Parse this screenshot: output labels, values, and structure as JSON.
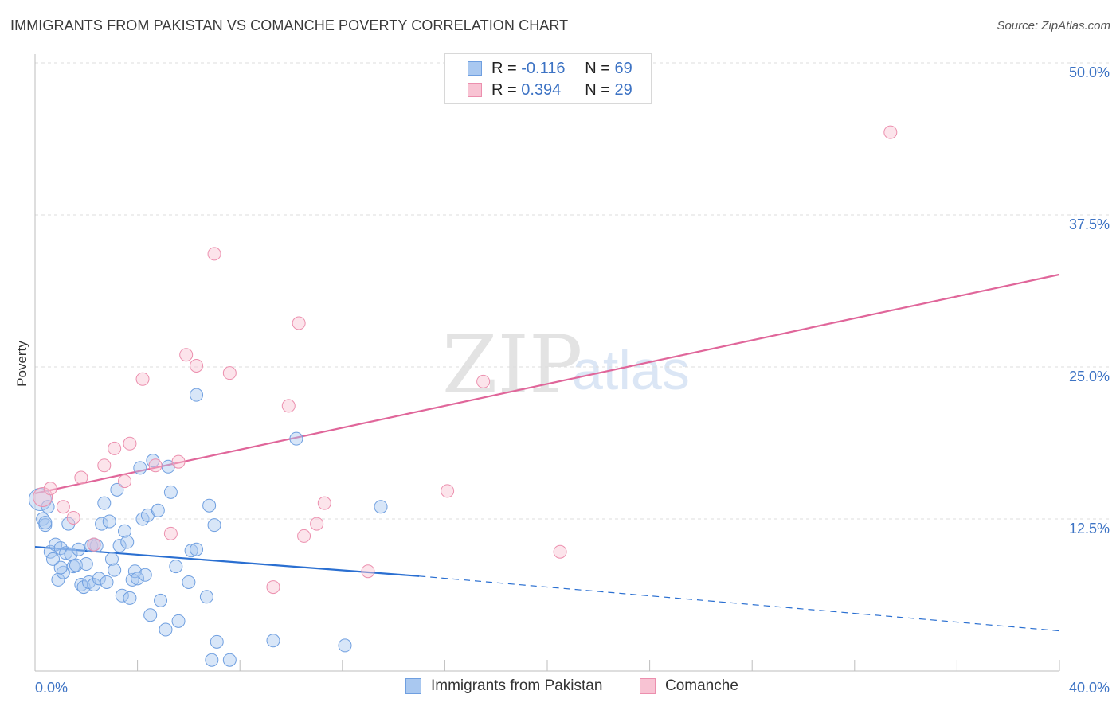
{
  "title": "IMMIGRANTS FROM PAKISTAN VS COMANCHE POVERTY CORRELATION CHART",
  "source": "Source: ZipAtlas.com",
  "watermark": {
    "zip": "ZIP",
    "atlas": "atlas"
  },
  "legend": {
    "r_label": "R =",
    "n_label": "N =",
    "rows": [
      {
        "r": "-0.116",
        "n": "69",
        "color": "#a9c8f0",
        "border": "#6f9fe0"
      },
      {
        "r": "0.394",
        "n": "29",
        "color": "#f8c3d3",
        "border": "#ec8fae"
      }
    ]
  },
  "bottom_legend": [
    {
      "label": "Immigrants from Pakistan",
      "color": "#a9c8f0",
      "border": "#6f9fe0"
    },
    {
      "label": "Comanche",
      "color": "#f8c3d3",
      "border": "#ec8fae"
    }
  ],
  "chart_data": {
    "type": "scatter",
    "title": "IMMIGRANTS FROM PAKISTAN VS COMANCHE POVERTY CORRELATION CHART",
    "xlabel": "",
    "ylabel": "Poverty",
    "xlim": [
      0,
      40
    ],
    "ylim": [
      0,
      50
    ],
    "x_tick_labels": [
      "0.0%",
      "40.0%"
    ],
    "y_ticks": [
      12.5,
      25.0,
      37.5,
      50.0
    ],
    "y_tick_labels": [
      "12.5%",
      "25.0%",
      "37.5%",
      "50.0%"
    ],
    "grid": true,
    "series": [
      {
        "name": "Immigrants from Pakistan",
        "color": "#6f9fe0",
        "fill": "rgba(169,200,240,0.45)",
        "trend_color": "#2a6fd1",
        "trend": {
          "x0": 0,
          "y0": 10.2,
          "x1": 15,
          "y1": 7.8,
          "dash_to_x": 40,
          "dash_to_y": 3.3
        },
        "points": [
          [
            0.2,
            14.1
          ],
          [
            0.3,
            12.5
          ],
          [
            0.4,
            12.0
          ],
          [
            0.5,
            13.5
          ],
          [
            0.6,
            9.8
          ],
          [
            0.7,
            9.2
          ],
          [
            0.8,
            10.4
          ],
          [
            0.9,
            7.5
          ],
          [
            1.0,
            10.1
          ],
          [
            1.1,
            8.1
          ],
          [
            1.2,
            9.7
          ],
          [
            1.3,
            12.1
          ],
          [
            1.4,
            9.6
          ],
          [
            1.5,
            8.6
          ],
          [
            1.6,
            8.7
          ],
          [
            1.7,
            10.0
          ],
          [
            1.8,
            7.1
          ],
          [
            1.9,
            6.9
          ],
          [
            2.0,
            8.8
          ],
          [
            2.1,
            7.3
          ],
          [
            2.2,
            10.3
          ],
          [
            2.3,
            7.1
          ],
          [
            2.4,
            10.3
          ],
          [
            2.5,
            7.6
          ],
          [
            2.6,
            12.1
          ],
          [
            2.7,
            13.8
          ],
          [
            2.8,
            7.3
          ],
          [
            2.9,
            12.3
          ],
          [
            3.0,
            9.2
          ],
          [
            3.1,
            8.3
          ],
          [
            3.2,
            14.9
          ],
          [
            3.3,
            10.3
          ],
          [
            3.4,
            6.2
          ],
          [
            3.5,
            11.5
          ],
          [
            3.6,
            10.6
          ],
          [
            3.7,
            6.0
          ],
          [
            3.8,
            7.5
          ],
          [
            3.9,
            8.2
          ],
          [
            4.0,
            7.6
          ],
          [
            4.1,
            16.7
          ],
          [
            4.2,
            12.5
          ],
          [
            4.3,
            7.9
          ],
          [
            4.4,
            12.8
          ],
          [
            4.5,
            4.6
          ],
          [
            4.6,
            17.3
          ],
          [
            4.8,
            13.2
          ],
          [
            4.9,
            5.8
          ],
          [
            5.1,
            3.4
          ],
          [
            5.2,
            16.8
          ],
          [
            5.3,
            14.7
          ],
          [
            5.5,
            8.6
          ],
          [
            5.6,
            4.1
          ],
          [
            6.0,
            7.3
          ],
          [
            6.1,
            9.9
          ],
          [
            6.3,
            10.0
          ],
          [
            6.7,
            6.1
          ],
          [
            6.8,
            13.6
          ],
          [
            6.9,
            0.9
          ],
          [
            7.0,
            12.0
          ],
          [
            7.1,
            2.4
          ],
          [
            7.6,
            0.9
          ],
          [
            6.3,
            22.7
          ],
          [
            9.3,
            2.5
          ],
          [
            10.2,
            19.1
          ],
          [
            12.1,
            2.1
          ],
          [
            13.5,
            13.5
          ],
          [
            0.4,
            12.2
          ],
          [
            1.0,
            8.5
          ],
          [
            2.3,
            10.4
          ]
        ],
        "sizes": "large point near x=0.2: 30px radius, others ~8px"
      },
      {
        "name": "Comanche",
        "color": "#ec8fae",
        "fill": "rgba(248,195,211,0.45)",
        "trend_color": "#e0669a",
        "trend": {
          "x0": 0,
          "y0": 14.6,
          "x1": 40,
          "y1": 32.6
        },
        "points": [
          [
            0.3,
            14.3
          ],
          [
            0.6,
            15.0
          ],
          [
            1.1,
            13.5
          ],
          [
            1.5,
            12.6
          ],
          [
            1.8,
            15.9
          ],
          [
            2.3,
            10.4
          ],
          [
            2.7,
            16.9
          ],
          [
            3.1,
            18.3
          ],
          [
            3.5,
            15.6
          ],
          [
            3.7,
            18.7
          ],
          [
            4.2,
            24.0
          ],
          [
            4.7,
            16.9
          ],
          [
            5.3,
            11.3
          ],
          [
            5.6,
            17.2
          ],
          [
            5.9,
            26.0
          ],
          [
            6.3,
            25.1
          ],
          [
            7.0,
            34.3
          ],
          [
            7.6,
            24.5
          ],
          [
            9.3,
            6.9
          ],
          [
            9.9,
            21.8
          ],
          [
            10.3,
            28.6
          ],
          [
            10.5,
            11.1
          ],
          [
            11.0,
            12.1
          ],
          [
            11.3,
            13.8
          ],
          [
            13.0,
            8.2
          ],
          [
            16.1,
            14.8
          ],
          [
            17.5,
            23.8
          ],
          [
            20.5,
            9.8
          ],
          [
            33.4,
            44.3
          ]
        ],
        "sizes": "large point near x=0.3: 12px radius, others ~8px"
      }
    ]
  }
}
